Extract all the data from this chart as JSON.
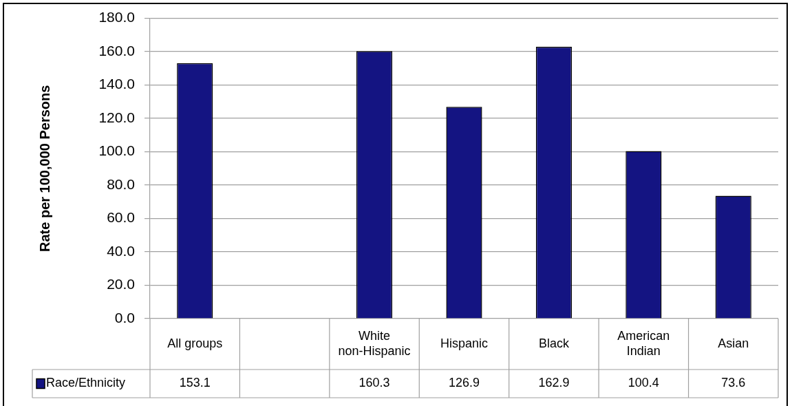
{
  "chart_data": {
    "type": "bar",
    "ylabel": "Rate per 100,000 Persons",
    "categories": [
      "All groups",
      null,
      "White non-Hispanic",
      "Hispanic",
      "Black",
      "American Indian",
      "Asian"
    ],
    "series": [
      {
        "name": "Race/Ethnicity",
        "color": "#141482",
        "values": [
          153.1,
          null,
          160.3,
          126.9,
          162.9,
          100.4,
          73.6
        ]
      }
    ],
    "ylim": [
      0,
      180
    ],
    "yticks": [
      {
        "value": 0,
        "label": "0.0"
      },
      {
        "value": 20,
        "label": "20.0"
      },
      {
        "value": 40,
        "label": "40.0"
      },
      {
        "value": 60,
        "label": "60.0"
      },
      {
        "value": 80,
        "label": "80.0"
      },
      {
        "value": 100,
        "label": "100.0"
      },
      {
        "value": 120,
        "label": "120.0"
      },
      {
        "value": 140,
        "label": "140.0"
      },
      {
        "value": 160,
        "label": "160.0"
      },
      {
        "value": 180,
        "label": "180.0"
      }
    ],
    "grid": "y",
    "legend": "bottom",
    "data_labels": true
  }
}
